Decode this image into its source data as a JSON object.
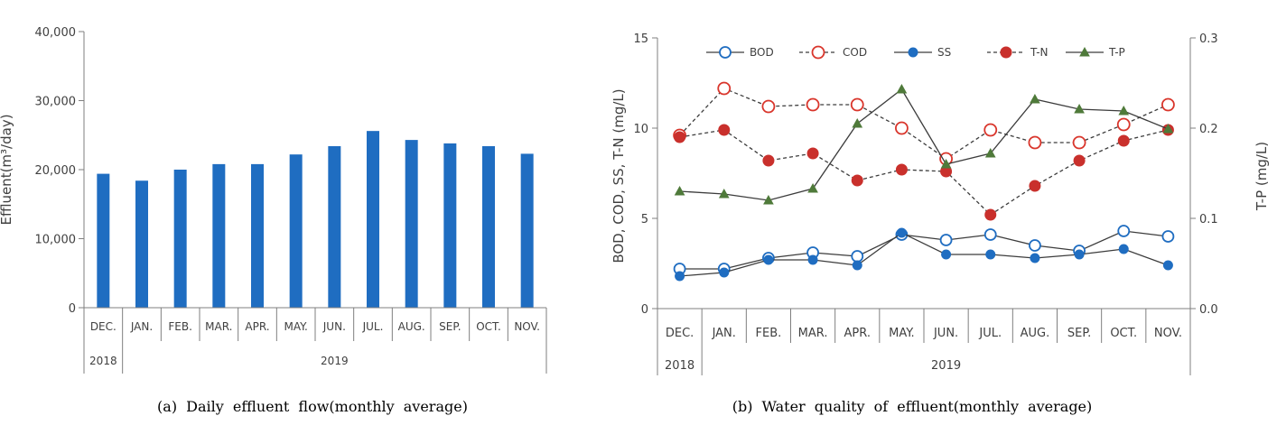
{
  "colors": {
    "bar": "#1f6dc1",
    "bod": "#1f6dc1",
    "cod": "#d9352b",
    "ss": "#1f6dc1",
    "tn": "#c9302c",
    "tp": "#3c3c3c",
    "axis": "#7f7f7f"
  },
  "chart_data": [
    {
      "type": "bar",
      "caption": "(a) Daily effluent flow(monthly average)",
      "ylabel": "Effluent(m³/day)",
      "ylim": [
        0,
        40000
      ],
      "yticks": [
        "0",
        "10,000",
        "20,000",
        "30,000",
        "40,000"
      ],
      "categories": [
        "DEC.",
        "JAN.",
        "FEB.",
        "MAR.",
        "APR.",
        "MAY.",
        "JUN.",
        "JUL.",
        "AUG.",
        "SEP.",
        "OCT.",
        "NOV."
      ],
      "year_labels": [
        "2018",
        "2019"
      ],
      "values": [
        19400,
        18400,
        20000,
        20800,
        20800,
        22200,
        23400,
        25600,
        24300,
        23800,
        23400,
        22300
      ]
    },
    {
      "type": "line",
      "caption": "(b) Water quality of effluent(monthly average)",
      "ylabel": "BOD, COD, SS, T-N (mg/L)",
      "y2label": "T-P (mg/L)",
      "ylim": [
        0,
        15
      ],
      "y2lim": [
        0,
        0.3
      ],
      "yticks": [
        "0",
        "5",
        "10",
        "15"
      ],
      "y2ticks": [
        "0.0",
        "0.1",
        "0.2",
        "0.3"
      ],
      "categories": [
        "DEC.",
        "JAN.",
        "FEB.",
        "MAR.",
        "APR.",
        "MAY.",
        "JUN.",
        "JUL.",
        "AUG.",
        "SEP.",
        "OCT.",
        "NOV."
      ],
      "year_labels": [
        "2018",
        "2019"
      ],
      "series": [
        {
          "name": "BOD",
          "axis": "left",
          "values": [
            2.2,
            2.2,
            2.8,
            3.1,
            2.9,
            4.1,
            3.8,
            4.1,
            3.5,
            3.2,
            4.3,
            4.0
          ]
        },
        {
          "name": "COD",
          "axis": "left",
          "values": [
            9.6,
            12.2,
            11.2,
            11.3,
            11.3,
            10.0,
            8.3,
            9.9,
            9.2,
            9.2,
            10.2,
            11.3
          ]
        },
        {
          "name": "SS",
          "axis": "left",
          "values": [
            1.8,
            2.0,
            2.7,
            2.7,
            2.4,
            4.2,
            3.0,
            3.0,
            2.8,
            3.0,
            3.3,
            2.4
          ]
        },
        {
          "name": "T-N",
          "axis": "left",
          "values": [
            9.5,
            9.9,
            8.2,
            8.6,
            7.1,
            7.7,
            7.6,
            5.2,
            6.8,
            8.2,
            9.3,
            9.9
          ]
        },
        {
          "name": "T-P",
          "axis": "right",
          "values": [
            0.13,
            0.127,
            0.12,
            0.133,
            0.205,
            0.243,
            0.16,
            0.172,
            0.232,
            0.221,
            0.219,
            0.199
          ]
        }
      ]
    }
  ]
}
